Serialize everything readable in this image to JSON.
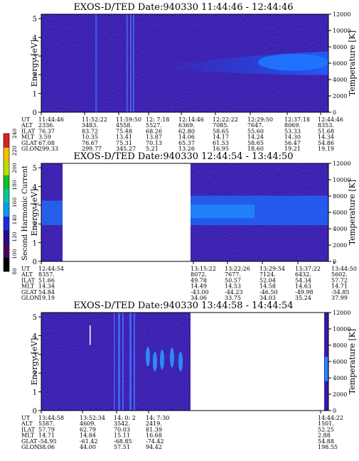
{
  "colorbar": {
    "label": "Second Harmonic Current",
    "ticks": [
      "80",
      "100",
      "120",
      "140",
      "160",
      "180",
      "200",
      "220",
      "240"
    ],
    "colors": [
      "#000000",
      "#4a0060",
      "#2a0a8a",
      "#1d2ae0",
      "#00a0f0",
      "#00c8a0",
      "#10c020",
      "#b8e000",
      "#f0c000",
      "#e02020"
    ]
  },
  "row_labels": [
    "UT",
    "ALT",
    "ILAT",
    "MLT",
    "GLAT",
    "GLON"
  ],
  "panels": [
    {
      "title": "EXOS-D/TED   Date:940330  11:44:46 - 12:44:46",
      "ylabel": "Energy [eV]",
      "y2label": "Temperature [K]",
      "yticks": [
        "0",
        "1",
        "2",
        "3",
        "4",
        "5"
      ],
      "y2ticks": [
        "0",
        "2000",
        "4000",
        "6000",
        "8000",
        "10000",
        "12000"
      ],
      "columns": [
        [
          "11:44:46",
          "2336.",
          "76.37",
          "3.59",
          "67.08",
          "299.33"
        ],
        [
          "11:52:22",
          "3483.",
          "83.72",
          "10.35",
          "76.67",
          "299.77"
        ],
        [
          "11:59:50",
          "4558.",
          "75.48",
          "13.41",
          "75.31",
          "345.27"
        ],
        [
          "12: 7:18",
          "5527.",
          "68.26",
          "13.87",
          "70.13",
          "5.21"
        ],
        [
          "12:14:46",
          "6369.",
          "62.80",
          "14.06",
          "65.37",
          "13.26"
        ],
        [
          "12:22:22",
          "7085.",
          "58.65",
          "14.17",
          "61.53",
          "16.95"
        ],
        [
          "12:29:50",
          "7647.",
          "55.60",
          "14.24",
          "58.65",
          "18.60"
        ],
        [
          "12:37:18",
          "8069.",
          "53.33",
          "14.30",
          "56.47",
          "19.21"
        ],
        [
          "12:44:46",
          "8353.",
          "51.68",
          "14.34",
          "54.86",
          "19.19"
        ]
      ]
    },
    {
      "title": "EXOS-D/TED   Date:940330  12:44:54 - 13:44:50",
      "ylabel": "Energy [eV]",
      "y2label": "Temperature [K]",
      "yticks": [
        "0",
        "1",
        "2",
        "3",
        "4",
        "5"
      ],
      "y2ticks": [
        "0",
        "2000",
        "4000",
        "6000",
        "8000",
        "10000",
        "12000"
      ],
      "columns": [
        [
          "12:44:54",
          "8357.",
          "51.66",
          "14.34",
          "54.84",
          "19.19"
        ],
        [
          "13:15:22",
          "8072.",
          "49.78",
          "14.49",
          "-43.00",
          "34.06"
        ],
        [
          "13:22:26",
          "7677.",
          "50.57",
          "14.53",
          "-44.23",
          "33.75"
        ],
        [
          "13:29:54",
          "7124.",
          "52.04",
          "14.58",
          "-46.50",
          "34.03"
        ],
        [
          "13:37:22",
          "6432.",
          "54.34",
          "14.63",
          "-49.98",
          "35.24"
        ],
        [
          "13:44:50",
          "5602.",
          "57.72",
          "14.71",
          "-54.85",
          "37.99"
        ]
      ]
    },
    {
      "title": "EXOS-D/TED   Date:940330  13:44:58 - 14:44:54",
      "ylabel": "Energy [eV]",
      "y2label": "Temperature [K]",
      "yticks": [
        "0",
        "1",
        "2",
        "3",
        "4",
        "5"
      ],
      "y2ticks": [
        "0",
        "2000",
        "4000",
        "6000",
        "8000",
        "10000",
        "12000"
      ],
      "columns": [
        [
          "13:44:58",
          "5587.",
          "57.79",
          "14.71",
          "-54.95",
          "38.06"
        ],
        [
          "13:52:34",
          "4609.",
          "62.79",
          "14.84",
          "-61.42",
          "44.00"
        ],
        [
          "14: 0: 2",
          "3542.",
          "70.03",
          "15.11",
          "-68.85",
          "57.51"
        ],
        [
          "14: 7:30",
          "2419.",
          "81.39",
          "16.68",
          "-74.42",
          "94.42"
        ],
        [
          "14:44:22",
          "1501.",
          "52.25",
          "2.88",
          "54.88",
          "198.55"
        ]
      ]
    }
  ],
  "chart_data": {
    "type": "heatmap",
    "instrument": "EXOS-D/TED",
    "date": "940330",
    "colorbar_label": "Second Harmonic Current",
    "colorbar_ticks": [
      80,
      100,
      120,
      140,
      160,
      180,
      200,
      220,
      240
    ],
    "ylabel": "Energy [eV]",
    "ylim": [
      0,
      5
    ],
    "y2label": "Temperature [K]",
    "y2lim": [
      0,
      12000
    ],
    "panels": [
      {
        "title": "EXOS-D/TED   Date:940330  11:44:46 - 12:44:46",
        "time_range": [
          "11:44:46",
          "12:44:46"
        ]
      },
      {
        "title": "EXOS-D/TED   Date:940330  12:44:54 - 13:44:50",
        "time_range": [
          "12:44:54",
          "13:44:50"
        ],
        "data_gap": [
          "12:50",
          "13:15:22"
        ]
      },
      {
        "title": "EXOS-D/TED   Date:940330  13:44:58 - 14:44:54",
        "time_range": [
          "13:44:58",
          "14:44:54"
        ],
        "data_gap": [
          "14:12",
          "14:44"
        ]
      }
    ]
  }
}
